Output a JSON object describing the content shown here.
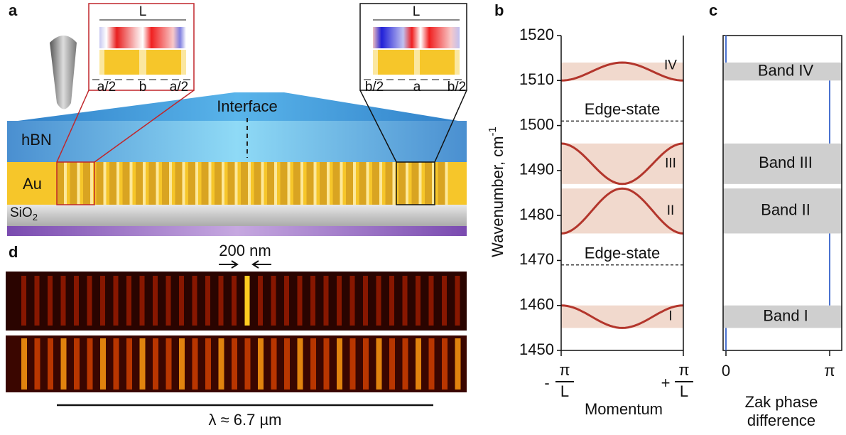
{
  "panel_a": {
    "label": "a",
    "inset_left": {
      "period": "L",
      "labels": [
        "a/2",
        "b",
        "a/2"
      ]
    },
    "inset_right": {
      "period": "L",
      "labels": [
        "b/2",
        "a",
        "b/2"
      ]
    },
    "interface": "Interface",
    "hbn": "hBN",
    "au": "Au",
    "sio2": "SiO",
    "sio2_sub": "2"
  },
  "panel_b": {
    "label": "b",
    "ylabel": "Wavenumber, cm",
    "ylabel_sup": "-1",
    "ylim": [
      1450,
      1520
    ],
    "yticks": [
      1450,
      1460,
      1470,
      1480,
      1490,
      1500,
      1510,
      1520
    ],
    "bands": [
      {
        "label": "IV",
        "range": [
          1510,
          1514
        ],
        "peak_center": true
      },
      {
        "label": "III",
        "range": [
          1487,
          1496
        ],
        "peak_center": false
      },
      {
        "label": "II",
        "range": [
          1476,
          1486
        ],
        "peak_center": true
      },
      {
        "label": "I",
        "range": [
          1455,
          1460
        ],
        "peak_center": false
      }
    ],
    "edge_states": [
      {
        "label": "Edge-state",
        "value": 1501
      },
      {
        "label": "Edge-state",
        "value": 1469
      }
    ],
    "x_left": {
      "sign": "-",
      "num": "π",
      "den": "L"
    },
    "x_right": {
      "sign": "+",
      "num": "π",
      "den": "L"
    },
    "xlabel": "Momentum"
  },
  "panel_c": {
    "label": "c",
    "bands": [
      "Band IV",
      "Band III",
      "Band II",
      "Band I"
    ],
    "xticks": [
      "0",
      "π"
    ],
    "xlabel": [
      "Zak phase",
      "difference"
    ]
  },
  "panel_d": {
    "label": "d",
    "width_label": "200 nm",
    "scale_label": "λ ≈ 6.7 µm"
  }
}
